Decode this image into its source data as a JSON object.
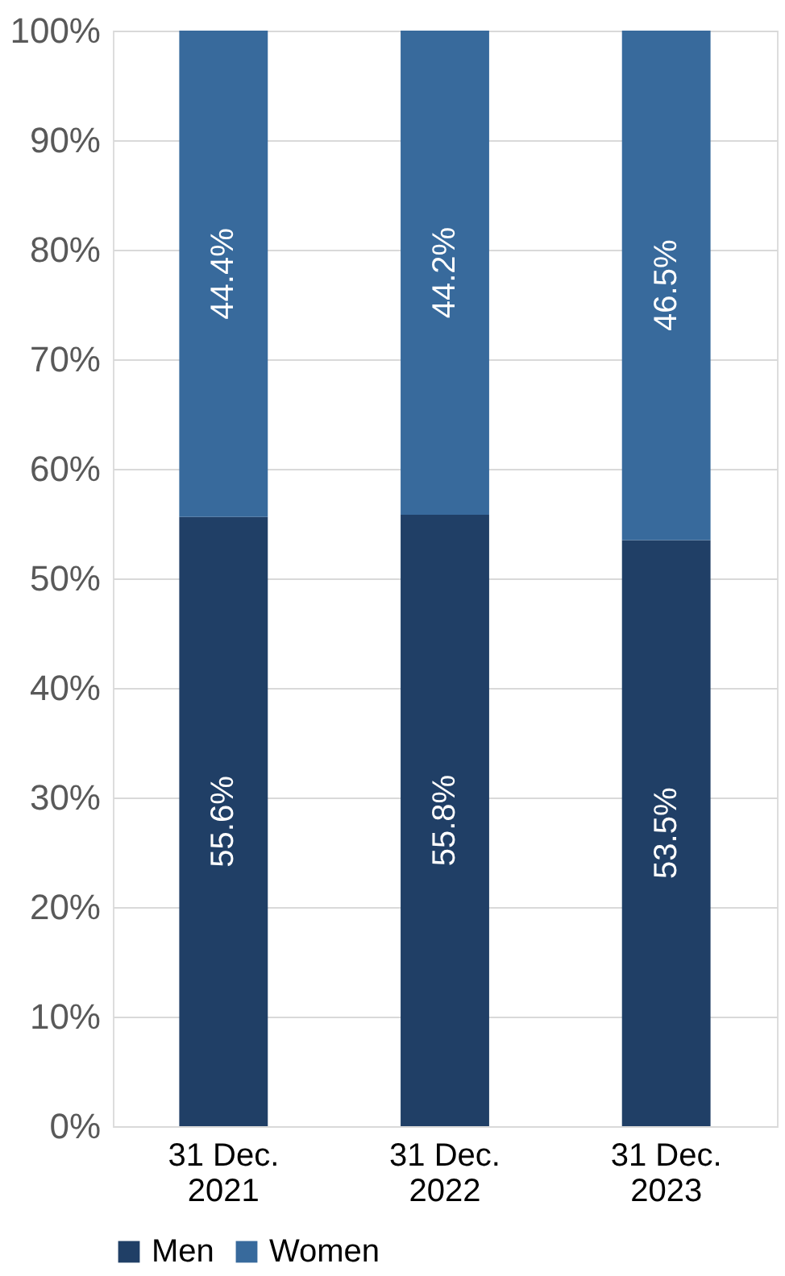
{
  "chart_data": {
    "type": "bar",
    "stacked": true,
    "categories": [
      "31 Dec.\n2021",
      "31 Dec.\n2022",
      "31 Dec.\n2023"
    ],
    "series": [
      {
        "name": "Men",
        "color": "#203f66",
        "values": [
          55.6,
          55.8,
          53.5
        ],
        "value_labels": [
          "55.6%",
          "55.8%",
          "53.5%"
        ]
      },
      {
        "name": "Women",
        "color": "#386a9c",
        "values": [
          44.4,
          44.2,
          46.5
        ],
        "value_labels": [
          "44.4%",
          "44.2%",
          "46.5%"
        ]
      }
    ],
    "ylim": [
      0,
      100
    ],
    "yticks": [
      {
        "value": 0,
        "label": "0%"
      },
      {
        "value": 10,
        "label": "10%"
      },
      {
        "value": 20,
        "label": "20%"
      },
      {
        "value": 30,
        "label": "30%"
      },
      {
        "value": 40,
        "label": "40%"
      },
      {
        "value": 50,
        "label": "50%"
      },
      {
        "value": 60,
        "label": "60%"
      },
      {
        "value": 70,
        "label": "70%"
      },
      {
        "value": 80,
        "label": "80%"
      },
      {
        "value": 90,
        "label": "90%"
      },
      {
        "value": 100,
        "label": "100%"
      }
    ],
    "grid": "y",
    "legend": "bottom"
  }
}
